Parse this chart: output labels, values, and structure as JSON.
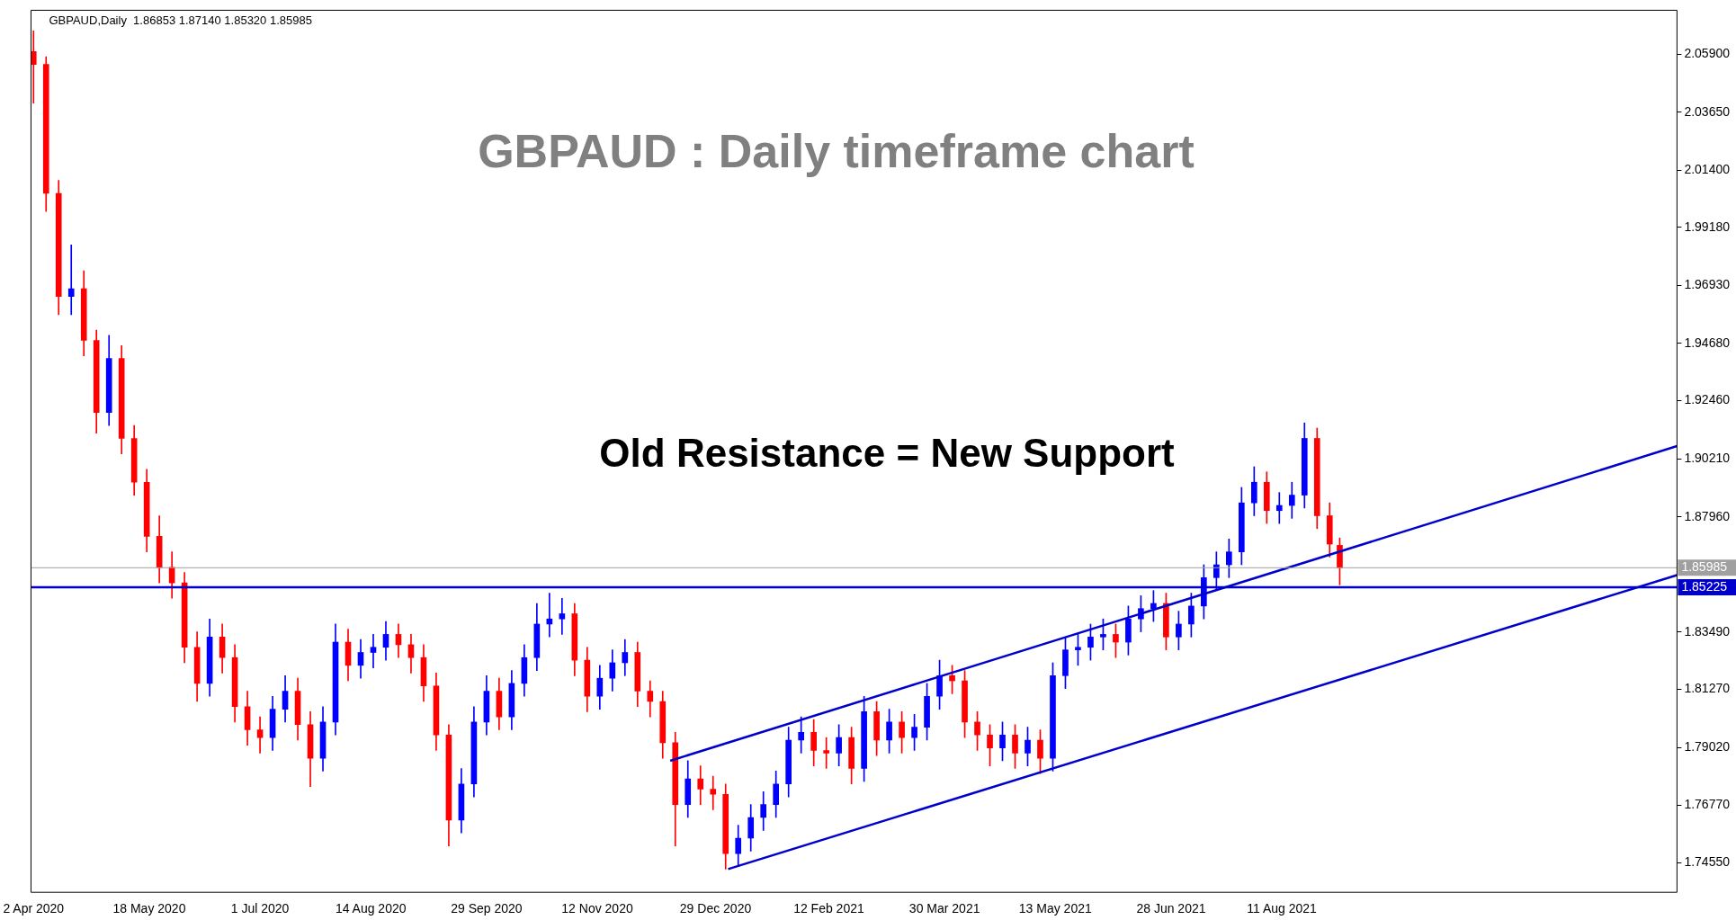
{
  "chart_data": {
    "type": "candlestick",
    "title": "GBPAUD : Daily timeframe chart",
    "annotations": [
      "GBPAUD,Daily  1.86853 1.87140 1.85320 1.85985",
      "Old Resistance = New Support"
    ],
    "x": [
      "2020-04-02",
      "2020-04-07",
      "2020-04-12",
      "2020-04-17",
      "2020-04-22",
      "2020-04-27",
      "2020-05-02",
      "2020-05-07",
      "2020-05-12",
      "2020-05-17",
      "2020-05-22",
      "2020-05-27",
      "2020-06-01",
      "2020-06-06",
      "2020-06-11",
      "2020-06-16",
      "2020-06-21",
      "2020-06-26",
      "2020-07-01",
      "2020-07-06",
      "2020-07-11",
      "2020-07-16",
      "2020-07-21",
      "2020-07-26",
      "2020-07-31",
      "2020-08-05",
      "2020-08-10",
      "2020-08-15",
      "2020-08-20",
      "2020-08-25",
      "2020-08-30",
      "2020-09-04",
      "2020-09-09",
      "2020-09-14",
      "2020-09-19",
      "2020-09-24",
      "2020-09-29",
      "2020-10-04",
      "2020-10-09",
      "2020-10-14",
      "2020-10-19",
      "2020-10-24",
      "2020-10-29",
      "2020-11-03",
      "2020-11-08",
      "2020-11-13",
      "2020-11-18",
      "2020-11-23",
      "2020-11-28",
      "2020-12-03",
      "2020-12-08",
      "2020-12-13",
      "2020-12-18",
      "2020-12-23",
      "2020-12-28",
      "2021-01-02",
      "2021-01-07",
      "2021-01-12",
      "2021-01-17",
      "2021-01-22",
      "2021-01-27",
      "2021-02-01",
      "2021-02-06",
      "2021-02-11",
      "2021-02-16",
      "2021-02-21",
      "2021-02-26",
      "2021-03-03",
      "2021-03-08",
      "2021-03-13",
      "2021-03-18",
      "2021-03-23",
      "2021-03-28",
      "2021-04-02",
      "2021-04-07",
      "2021-04-12",
      "2021-04-17",
      "2021-04-22",
      "2021-04-27",
      "2021-05-02",
      "2021-05-07",
      "2021-05-12",
      "2021-05-17",
      "2021-05-22",
      "2021-05-27",
      "2021-06-01",
      "2021-06-06",
      "2021-06-11",
      "2021-06-16",
      "2021-06-21",
      "2021-06-26",
      "2021-07-01",
      "2021-07-06",
      "2021-07-11",
      "2021-07-16",
      "2021-07-21",
      "2021-07-26",
      "2021-07-31",
      "2021-08-05",
      "2021-08-10",
      "2021-08-15",
      "2021-08-20",
      "2021-08-25",
      "2021-08-30",
      "2021-09-03"
    ],
    "ohlc": [
      [
        2.06,
        2.068,
        2.04,
        2.055
      ],
      [
        2.055,
        2.058,
        1.998,
        2.005
      ],
      [
        2.005,
        2.01,
        1.958,
        1.965
      ],
      [
        1.965,
        1.985,
        1.958,
        1.968
      ],
      [
        1.968,
        1.975,
        1.942,
        1.948
      ],
      [
        1.948,
        1.952,
        1.912,
        1.92
      ],
      [
        1.92,
        1.95,
        1.915,
        1.941
      ],
      [
        1.941,
        1.946,
        1.904,
        1.91
      ],
      [
        1.91,
        1.915,
        1.888,
        1.893
      ],
      [
        1.893,
        1.898,
        1.866,
        1.872
      ],
      [
        1.872,
        1.88,
        1.854,
        1.86
      ],
      [
        1.86,
        1.866,
        1.848,
        1.854
      ],
      [
        1.854,
        1.858,
        1.823,
        1.829
      ],
      [
        1.829,
        1.835,
        1.808,
        1.815
      ],
      [
        1.815,
        1.84,
        1.81,
        1.833
      ],
      [
        1.833,
        1.838,
        1.819,
        1.825
      ],
      [
        1.825,
        1.83,
        1.8,
        1.806
      ],
      [
        1.806,
        1.812,
        1.791,
        1.797
      ],
      [
        1.797,
        1.802,
        1.788,
        1.794
      ],
      [
        1.794,
        1.81,
        1.789,
        1.805
      ],
      [
        1.805,
        1.818,
        1.8,
        1.812
      ],
      [
        1.812,
        1.817,
        1.793,
        1.799
      ],
      [
        1.799,
        1.804,
        1.775,
        1.786
      ],
      [
        1.786,
        1.806,
        1.781,
        1.8
      ],
      [
        1.8,
        1.838,
        1.795,
        1.831
      ],
      [
        1.831,
        1.836,
        1.816,
        1.822
      ],
      [
        1.822,
        1.832,
        1.817,
        1.827
      ],
      [
        1.827,
        1.834,
        1.821,
        1.829
      ],
      [
        1.829,
        1.839,
        1.824,
        1.834
      ],
      [
        1.834,
        1.838,
        1.825,
        1.83
      ],
      [
        1.83,
        1.834,
        1.819,
        1.825
      ],
      [
        1.825,
        1.83,
        1.808,
        1.814
      ],
      [
        1.814,
        1.819,
        1.789,
        1.795
      ],
      [
        1.795,
        1.799,
        1.752,
        1.762
      ],
      [
        1.762,
        1.782,
        1.757,
        1.776
      ],
      [
        1.776,
        1.806,
        1.771,
        1.8
      ],
      [
        1.8,
        1.818,
        1.795,
        1.812
      ],
      [
        1.812,
        1.817,
        1.797,
        1.802
      ],
      [
        1.802,
        1.82,
        1.797,
        1.815
      ],
      [
        1.815,
        1.83,
        1.81,
        1.825
      ],
      [
        1.825,
        1.846,
        1.82,
        1.838
      ],
      [
        1.838,
        1.85,
        1.833,
        1.84
      ],
      [
        1.84,
        1.848,
        1.834,
        1.842
      ],
      [
        1.842,
        1.846,
        1.818,
        1.824
      ],
      [
        1.824,
        1.829,
        1.804,
        1.81
      ],
      [
        1.81,
        1.822,
        1.805,
        1.817
      ],
      [
        1.817,
        1.828,
        1.812,
        1.823
      ],
      [
        1.823,
        1.832,
        1.818,
        1.827
      ],
      [
        1.827,
        1.831,
        1.806,
        1.812
      ],
      [
        1.812,
        1.816,
        1.802,
        1.808
      ],
      [
        1.808,
        1.812,
        1.786,
        1.792
      ],
      [
        1.792,
        1.796,
        1.752,
        1.768
      ],
      [
        1.768,
        1.785,
        1.763,
        1.778
      ],
      [
        1.778,
        1.783,
        1.768,
        1.774
      ],
      [
        1.774,
        1.779,
        1.766,
        1.772
      ],
      [
        1.772,
        1.776,
        1.743,
        1.749
      ],
      [
        1.749,
        1.76,
        1.744,
        1.755
      ],
      [
        1.755,
        1.768,
        1.75,
        1.763
      ],
      [
        1.763,
        1.773,
        1.758,
        1.768
      ],
      [
        1.768,
        1.781,
        1.763,
        1.776
      ],
      [
        1.776,
        1.798,
        1.771,
        1.793
      ],
      [
        1.793,
        1.802,
        1.788,
        1.796
      ],
      [
        1.796,
        1.801,
        1.783,
        1.789
      ],
      [
        1.789,
        1.794,
        1.782,
        1.788
      ],
      [
        1.788,
        1.799,
        1.783,
        1.794
      ],
      [
        1.794,
        1.798,
        1.776,
        1.782
      ],
      [
        1.782,
        1.81,
        1.777,
        1.804
      ],
      [
        1.804,
        1.808,
        1.787,
        1.793
      ],
      [
        1.793,
        1.805,
        1.788,
        1.8
      ],
      [
        1.8,
        1.804,
        1.788,
        1.794
      ],
      [
        1.794,
        1.803,
        1.789,
        1.798
      ],
      [
        1.798,
        1.815,
        1.793,
        1.81
      ],
      [
        1.81,
        1.824,
        1.805,
        1.818
      ],
      [
        1.818,
        1.822,
        1.811,
        1.816
      ],
      [
        1.816,
        1.82,
        1.794,
        1.8
      ],
      [
        1.8,
        1.804,
        1.789,
        1.795
      ],
      [
        1.795,
        1.799,
        1.783,
        1.79
      ],
      [
        1.79,
        1.8,
        1.785,
        1.795
      ],
      [
        1.795,
        1.799,
        1.782,
        1.788
      ],
      [
        1.788,
        1.798,
        1.783,
        1.793
      ],
      [
        1.793,
        1.797,
        1.78,
        1.786
      ],
      [
        1.786,
        1.823,
        1.781,
        1.818
      ],
      [
        1.818,
        1.833,
        1.813,
        1.828
      ],
      [
        1.828,
        1.834,
        1.822,
        1.829
      ],
      [
        1.829,
        1.838,
        1.824,
        1.833
      ],
      [
        1.833,
        1.84,
        1.828,
        1.834
      ],
      [
        1.834,
        1.838,
        1.825,
        1.831
      ],
      [
        1.831,
        1.845,
        1.826,
        1.84
      ],
      [
        1.84,
        1.849,
        1.835,
        1.844
      ],
      [
        1.844,
        1.851,
        1.839,
        1.846
      ],
      [
        1.846,
        1.85,
        1.828,
        1.833
      ],
      [
        1.833,
        1.843,
        1.828,
        1.838
      ],
      [
        1.838,
        1.85,
        1.833,
        1.845
      ],
      [
        1.845,
        1.861,
        1.84,
        1.856
      ],
      [
        1.856,
        1.866,
        1.851,
        1.861
      ],
      [
        1.861,
        1.871,
        1.856,
        1.866
      ],
      [
        1.866,
        1.891,
        1.861,
        1.885
      ],
      [
        1.885,
        1.899,
        1.88,
        1.893
      ],
      [
        1.893,
        1.897,
        1.877,
        1.882
      ],
      [
        1.882,
        1.889,
        1.877,
        1.884
      ],
      [
        1.884,
        1.893,
        1.879,
        1.888
      ],
      [
        1.888,
        1.916,
        1.883,
        1.91
      ],
      [
        1.91,
        1.914,
        1.875,
        1.88
      ],
      [
        1.88,
        1.885,
        1.864,
        1.869
      ],
      [
        1.86853,
        1.8714,
        1.8532,
        1.85985
      ]
    ],
    "colors": [
      "#ff0000",
      "#ff0000",
      "#ff0000",
      "#0000ff",
      "#ff0000",
      "#ff0000",
      "#0000ff",
      "#ff0000",
      "#ff0000",
      "#ff0000",
      "#ff0000",
      "#ff0000",
      "#ff0000",
      "#ff0000",
      "#0000ff",
      "#ff0000",
      "#ff0000",
      "#ff0000",
      "#ff0000",
      "#0000ff",
      "#0000ff",
      "#ff0000",
      "#ff0000",
      "#0000ff",
      "#0000ff",
      "#ff0000",
      "#0000ff",
      "#0000ff",
      "#0000ff",
      "#ff0000",
      "#ff0000",
      "#ff0000",
      "#ff0000",
      "#ff0000",
      "#0000ff",
      "#0000ff",
      "#0000ff",
      "#ff0000",
      "#0000ff",
      "#0000ff",
      "#0000ff",
      "#0000ff",
      "#0000ff",
      "#ff0000",
      "#ff0000",
      "#0000ff",
      "#0000ff",
      "#0000ff",
      "#ff0000",
      "#ff0000",
      "#ff0000",
      "#ff0000",
      "#0000ff",
      "#ff0000",
      "#ff0000",
      "#ff0000",
      "#0000ff",
      "#0000ff",
      "#0000ff",
      "#0000ff",
      "#0000ff",
      "#0000ff",
      "#ff0000",
      "#ff0000",
      "#0000ff",
      "#ff0000",
      "#0000ff",
      "#ff0000",
      "#0000ff",
      "#ff0000",
      "#0000ff",
      "#0000ff",
      "#0000ff",
      "#ff0000",
      "#ff0000",
      "#ff0000",
      "#ff0000",
      "#0000ff",
      "#ff0000",
      "#0000ff",
      "#ff0000",
      "#0000ff",
      "#0000ff",
      "#0000ff",
      "#0000ff",
      "#0000ff",
      "#ff0000",
      "#0000ff",
      "#0000ff",
      "#0000ff",
      "#ff0000",
      "#0000ff",
      "#0000ff",
      "#0000ff",
      "#0000ff",
      "#0000ff",
      "#0000ff",
      "#0000ff",
      "#ff0000",
      "#0000ff",
      "#0000ff",
      "#0000ff",
      "#ff0000",
      "#ff0000",
      "#ff0000"
    ],
    "series": [
      {
        "type": "line",
        "color": "#0000cd",
        "x": [
          "2020-12-11",
          "2022-01-15"
        ],
        "values": [
          1.785,
          1.907
        ]
      },
      {
        "type": "line",
        "color": "#0000cd",
        "x": [
          "2021-01-03",
          "2022-01-15"
        ],
        "values": [
          1.743,
          1.857
        ]
      }
    ],
    "ref_lines": [
      {
        "axis": "y",
        "value": 1.85985,
        "label": "1.85985",
        "color": "#a0a0a0"
      },
      {
        "axis": "y",
        "value": 1.85225,
        "label": "1.85225",
        "color": "#0000cd"
      }
    ],
    "xlim": [
      "2020-04-01",
      "2022-01-15"
    ],
    "xticks": [
      {
        "value": "2020-04-02",
        "label": "2 Apr 2020"
      },
      {
        "value": "2020-05-18",
        "label": "18 May 2020"
      },
      {
        "value": "2020-07-01",
        "label": "1 Jul 2020"
      },
      {
        "value": "2020-08-14",
        "label": "14 Aug 2020"
      },
      {
        "value": "2020-09-29",
        "label": "29 Sep 2020"
      },
      {
        "value": "2020-11-12",
        "label": "12 Nov 2020"
      },
      {
        "value": "2020-12-29",
        "label": "29 Dec 2020"
      },
      {
        "value": "2021-02-12",
        "label": "12 Feb 2021"
      },
      {
        "value": "2021-03-30",
        "label": "30 Mar 2021"
      },
      {
        "value": "2021-05-13",
        "label": "13 May 2021"
      },
      {
        "value": "2021-06-28",
        "label": "28 Jun 2021"
      },
      {
        "value": "2021-08-11",
        "label": "11 Aug 2021"
      }
    ],
    "ylim": [
      1.734,
      2.076
    ],
    "yticks": [
      {
        "value": 1.7455,
        "label": "1.74550"
      },
      {
        "value": 1.7677,
        "label": "1.76770"
      },
      {
        "value": 1.7902,
        "label": "1.79020"
      },
      {
        "value": 1.8127,
        "label": "1.81270"
      },
      {
        "value": 1.8349,
        "label": "1.83490"
      },
      {
        "value": 1.8796,
        "label": "1.87960"
      },
      {
        "value": 1.9021,
        "label": "1.90210"
      },
      {
        "value": 1.9246,
        "label": "1.92460"
      },
      {
        "value": 1.9468,
        "label": "1.94680"
      },
      {
        "value": 1.9693,
        "label": "1.96930"
      },
      {
        "value": 1.9918,
        "label": "1.99180"
      },
      {
        "value": 2.014,
        "label": "2.01400"
      },
      {
        "value": 2.0365,
        "label": "2.03650"
      },
      {
        "value": 2.059,
        "label": "2.05900"
      }
    ],
    "legend": false
  }
}
